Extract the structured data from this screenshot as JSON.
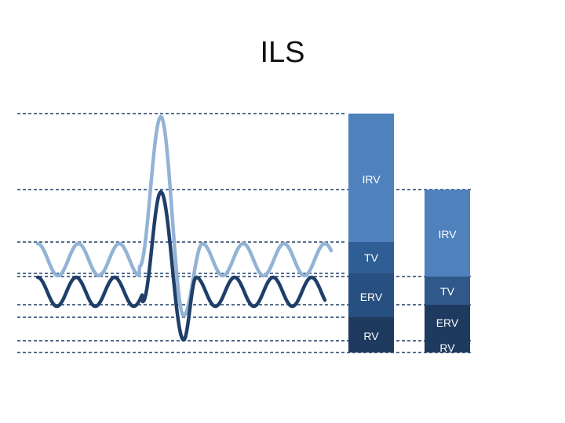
{
  "title": "ILS",
  "colors": {
    "background": "#ffffff",
    "guide_line": "#1f3f68",
    "light_wave": "#93b3d6",
    "dark_wave": "#1f3f68",
    "irv_segment": "#4f81bd",
    "tv_segment_left": "#2f5e94",
    "erv_segment_left": "#274f7f",
    "tv_segment_right": "#30598a",
    "lower_segment": "#1e3a5f",
    "segment_text": "#ffffff"
  },
  "left_column": {
    "segments": [
      {
        "id": "irv",
        "label": "IRV"
      },
      {
        "id": "tv",
        "label": "TV"
      },
      {
        "id": "erv",
        "label": "ERV"
      },
      {
        "id": "rv",
        "label": "RV"
      }
    ]
  },
  "right_column": {
    "segments": [
      {
        "id": "irv",
        "label": "IRV"
      },
      {
        "id": "tv",
        "label": "TV"
      },
      {
        "id": "erv",
        "label": "ERV"
      },
      {
        "id": "rv",
        "label": "RV"
      }
    ]
  }
}
